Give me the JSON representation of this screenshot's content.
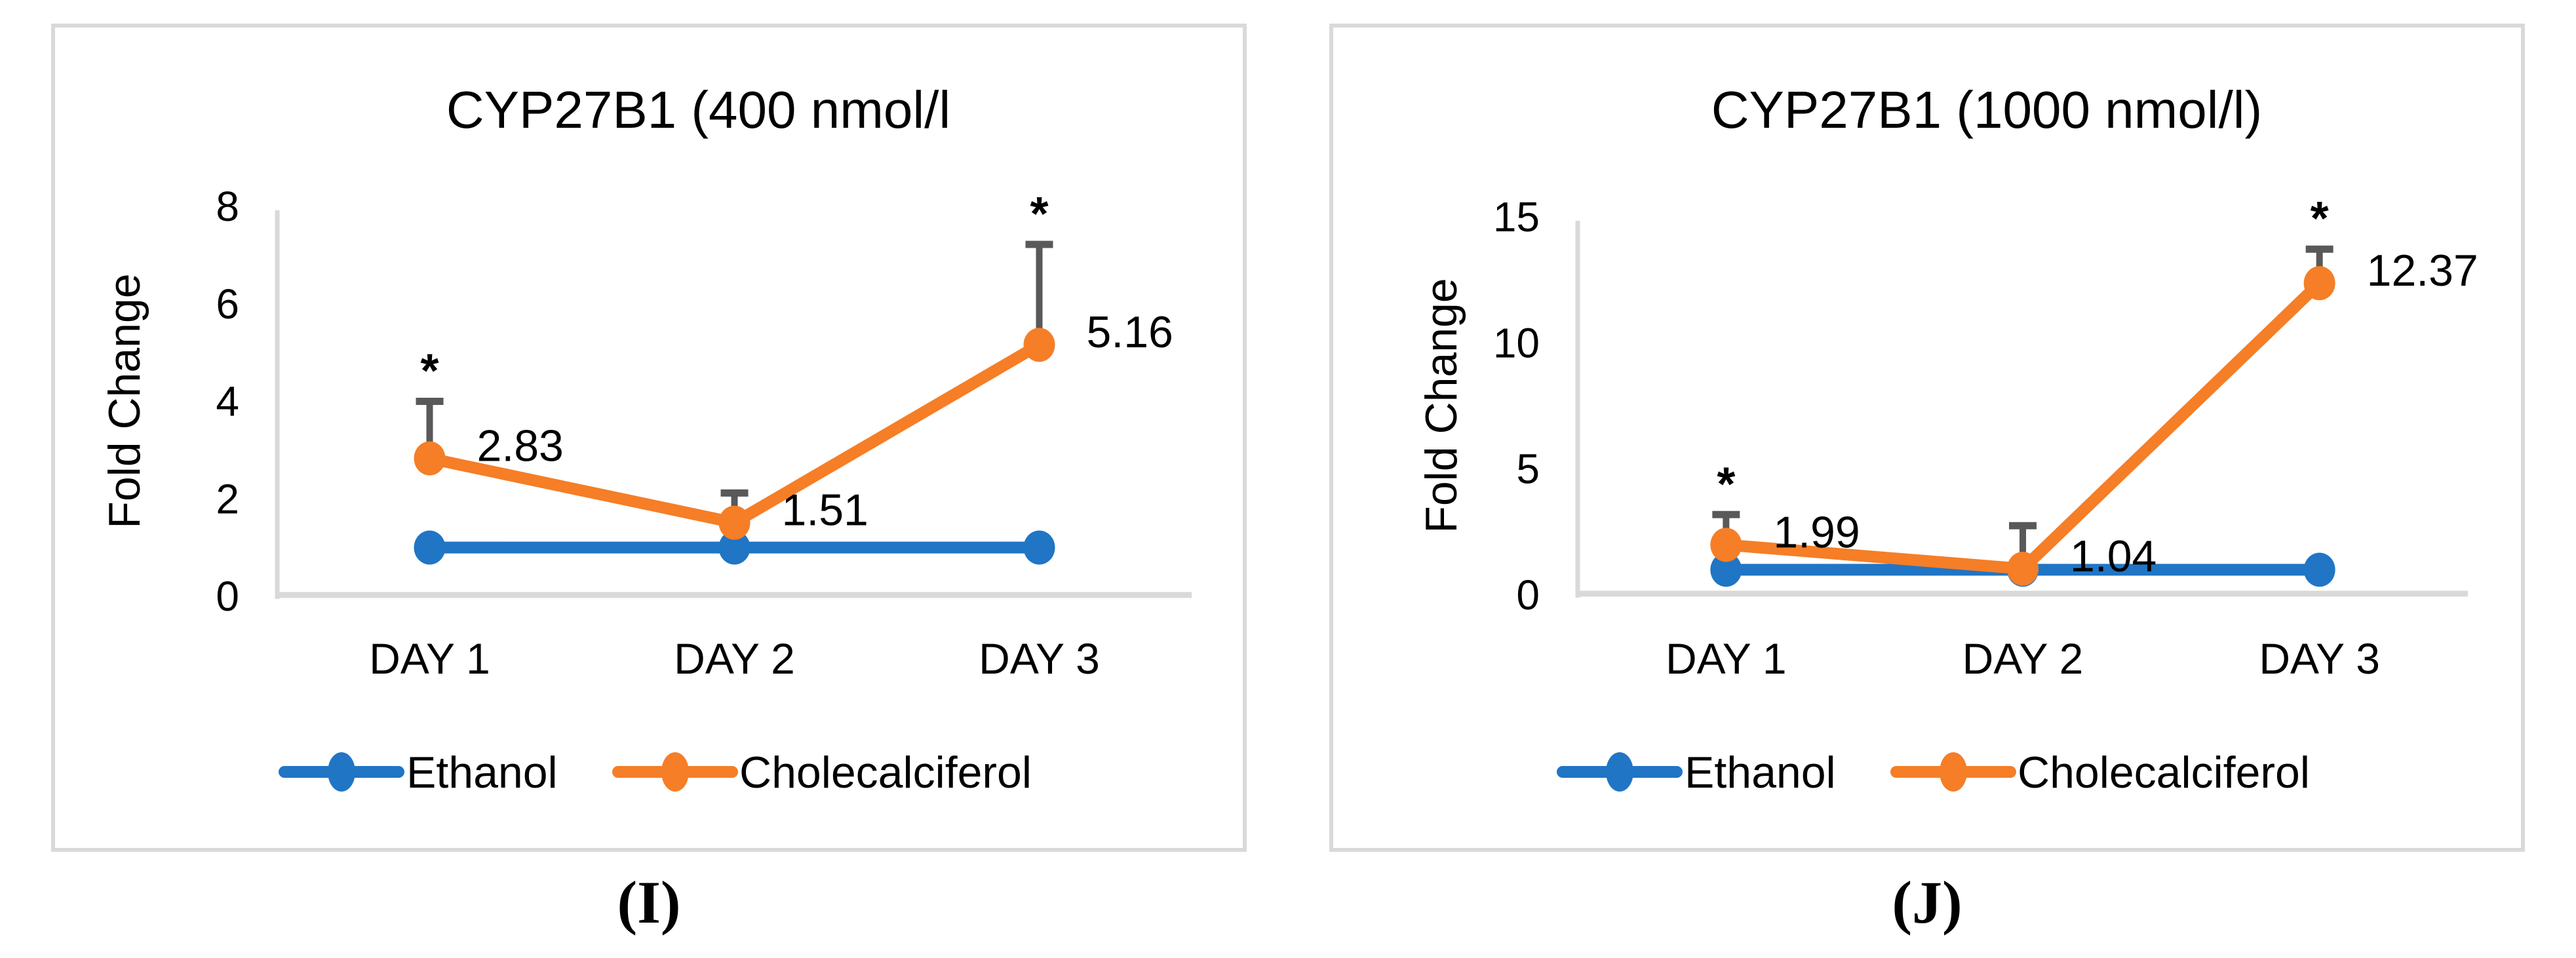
{
  "figure": {
    "captions": [
      "(I)",
      "(J)"
    ]
  },
  "chart_data": [
    {
      "type": "line",
      "title": "CYP27B1 (400 nmol/l",
      "ylabel": "Fold Change",
      "xlabel": "",
      "categories": [
        "DAY 1",
        "DAY 2",
        "DAY 3"
      ],
      "ylim": [
        0,
        8
      ],
      "yticks": [
        0,
        2,
        4,
        6,
        8
      ],
      "grid": false,
      "legend_position": "bottom",
      "error_bar_color": "#595959",
      "axis_color": "#D9D9D9",
      "series": [
        {
          "name": "Ethanol",
          "color": "#2075C5",
          "values": [
            1,
            1,
            1
          ]
        },
        {
          "name": "Cholecalciferol",
          "color": "#F57E27",
          "values": [
            2.83,
            1.51,
            5.16
          ],
          "data_labels": [
            "2.83",
            "1.51",
            "5.16"
          ],
          "error_upper": [
            1.17,
            0.61,
            2.06
          ],
          "significance": [
            "*",
            "",
            "*"
          ]
        }
      ]
    },
    {
      "type": "line",
      "title": "CYP27B1 (1000 nmol/l)",
      "ylabel": "Fold Change",
      "xlabel": "",
      "categories": [
        "DAY 1",
        "DAY 2",
        "DAY 3"
      ],
      "ylim": [
        0,
        15
      ],
      "yticks": [
        0,
        5,
        10,
        15
      ],
      "grid": false,
      "legend_position": "bottom",
      "error_bar_color": "#595959",
      "axis_color": "#D9D9D9",
      "series": [
        {
          "name": "Ethanol",
          "color": "#2075C5",
          "values": [
            1,
            1,
            1
          ]
        },
        {
          "name": "Cholecalciferol",
          "color": "#F57E27",
          "values": [
            1.99,
            1.04,
            12.37
          ],
          "data_labels": [
            "1.99",
            "1.04",
            "12.37"
          ],
          "error_upper": [
            1.2,
            1.71,
            1.35
          ],
          "significance": [
            "*",
            "",
            "*"
          ]
        }
      ]
    }
  ]
}
